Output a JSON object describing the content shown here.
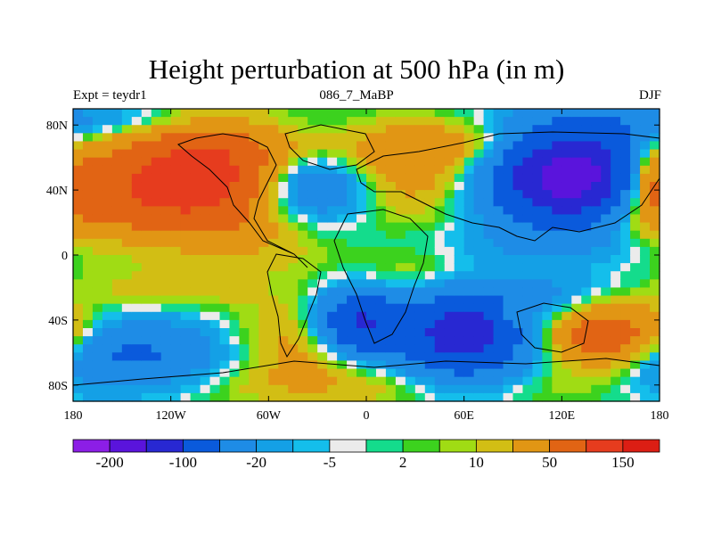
{
  "chart_data": {
    "type": "heatmap",
    "title": "Height perturbation at 500 hPa (in m)",
    "left_label": "Expt = teydr1",
    "center_label": "086_7_MaBP",
    "right_label": "DJF",
    "x_ticks": [
      {
        "value": -180,
        "label": "180"
      },
      {
        "value": -120,
        "label": "120W"
      },
      {
        "value": -60,
        "label": "60W"
      },
      {
        "value": 0,
        "label": "0"
      },
      {
        "value": 60,
        "label": "60E"
      },
      {
        "value": 120,
        "label": "120E"
      },
      {
        "value": 180,
        "label": "180"
      }
    ],
    "y_ticks": [
      {
        "value": 80,
        "label": "80N"
      },
      {
        "value": 40,
        "label": "40N"
      },
      {
        "value": 0,
        "label": "0"
      },
      {
        "value": -40,
        "label": "40S"
      },
      {
        "value": -80,
        "label": "80S"
      }
    ],
    "xlim": [
      -180,
      180
    ],
    "ylim": [
      -90,
      90
    ],
    "colorbar": {
      "colors": [
        "#8c1ee6",
        "#5a14dc",
        "#2828d2",
        "#0a5adc",
        "#1e8ce6",
        "#14a0e6",
        "#14beeb",
        "#ebebeb",
        "#14dc8c",
        "#3cd21e",
        "#a0dc14",
        "#d2be14",
        "#e19614",
        "#e16414",
        "#e63c1e",
        "#dc1e14"
      ],
      "labels": [
        {
          "index": 1,
          "text": "-200"
        },
        {
          "index": 3,
          "text": "-100"
        },
        {
          "index": 5,
          "text": "-20"
        },
        {
          "index": 7,
          "text": "-5"
        },
        {
          "index": 9,
          "text": "2"
        },
        {
          "index": 11,
          "text": "10"
        },
        {
          "index": 13,
          "text": "50"
        },
        {
          "index": 15,
          "text": "150"
        }
      ]
    },
    "fields": [
      {
        "lon": -165,
        "lat": 42,
        "value": 80,
        "sx": 42,
        "sy": 22
      },
      {
        "lon": -95,
        "lat": 48,
        "value": 120,
        "sx": 34,
        "sy": 24
      },
      {
        "lon": -35,
        "lat": 42,
        "value": -70,
        "sx": 30,
        "sy": 14
      },
      {
        "lon": 20,
        "lat": 50,
        "value": 40,
        "sx": 34,
        "sy": 18
      },
      {
        "lon": 130,
        "lat": 48,
        "value": -200,
        "sx": 36,
        "sy": 22
      },
      {
        "lon": 175,
        "lat": 45,
        "value": 60,
        "sx": 14,
        "sy": 16
      },
      {
        "lon": 60,
        "lat": 68,
        "value": 30,
        "sx": 40,
        "sy": 10
      },
      {
        "lon": -140,
        "lat": 82,
        "value": -30,
        "sx": 60,
        "sy": 8
      },
      {
        "lon": 150,
        "lat": 20,
        "value": 12,
        "sx": 30,
        "sy": 10
      },
      {
        "lon": -130,
        "lat": 8,
        "value": -8,
        "sx": 35,
        "sy": 8
      },
      {
        "lon": 90,
        "lat": 5,
        "value": -10,
        "sx": 50,
        "sy": 8
      },
      {
        "lon": -120,
        "lat": -22,
        "value": 15,
        "sx": 40,
        "sy": 8
      },
      {
        "lon": -150,
        "lat": -62,
        "value": -60,
        "sx": 45,
        "sy": 16
      },
      {
        "lon": -5,
        "lat": -42,
        "value": -110,
        "sx": 18,
        "sy": 14
      },
      {
        "lon": -40,
        "lat": -55,
        "value": 30,
        "sx": 30,
        "sy": 18
      },
      {
        "lon": 60,
        "lat": -48,
        "value": -130,
        "sx": 28,
        "sy": 20
      },
      {
        "lon": 90,
        "lat": -35,
        "value": 25,
        "sx": 8,
        "sy": 6
      },
      {
        "lon": 150,
        "lat": -50,
        "value": 90,
        "sx": 28,
        "sy": 14
      },
      {
        "lon": 120,
        "lat": -25,
        "value": -20,
        "sx": 30,
        "sy": 10
      },
      {
        "lon": 0,
        "lat": -80,
        "value": 15,
        "sx": 120,
        "sy": 10
      },
      {
        "lon": 40,
        "lat": -15,
        "value": 20,
        "sx": 30,
        "sy": 14
      },
      {
        "lon": -60,
        "lat": 0,
        "value": 8,
        "sx": 30,
        "sy": 10
      }
    ]
  }
}
